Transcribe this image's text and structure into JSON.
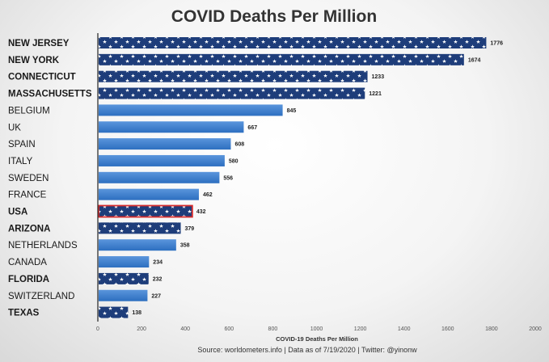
{
  "chart_data": {
    "type": "bar",
    "orientation": "horizontal",
    "title": "COVID Deaths Per Million",
    "xlabel": "COVID-19 Deaths Per Million",
    "source": "Source:  worldometers.info | Data as of 7/19/2020 | Twitter: @yinonw",
    "xlim": [
      0,
      2000
    ],
    "xticks": [
      "0",
      "200",
      "400",
      "600",
      "800",
      "1000",
      "1200",
      "1400",
      "1600",
      "1800",
      "2000"
    ],
    "categories": [
      "NEW JERSEY",
      "NEW YORK",
      "CONNECTICUT",
      "MASSACHUSETTS",
      "BELGIUM",
      "UK",
      "SPAIN",
      "ITALY",
      "SWEDEN",
      "FRANCE",
      "USA",
      "ARIZONA",
      "NETHERLANDS",
      "CANADA",
      "FLORIDA",
      "SWITZERLAND",
      "TEXAS"
    ],
    "values": [
      1776,
      1674,
      1233,
      1221,
      845,
      667,
      608,
      580,
      556,
      462,
      432,
      379,
      358,
      234,
      232,
      227,
      138
    ],
    "highlight": [
      "bold",
      "bold",
      "bold",
      "bold",
      "plain",
      "plain",
      "plain",
      "plain",
      "plain",
      "plain",
      "bold",
      "bold",
      "plain",
      "plain",
      "bold",
      "plain",
      "bold"
    ],
    "bar_style": [
      "stars",
      "stars",
      "stars",
      "stars",
      "solid",
      "solid",
      "solid",
      "solid",
      "solid",
      "solid",
      "stars-outlined",
      "stars",
      "solid",
      "solid",
      "stars",
      "solid",
      "stars"
    ],
    "grid": false,
    "legend": "none",
    "colors": {
      "us_bar": "#1e3d7a",
      "country_bar": "#2d6fc0",
      "country_bar_light": "#5a95dc",
      "usa_outline": "#d62b2b",
      "axis": "#222222"
    }
  }
}
